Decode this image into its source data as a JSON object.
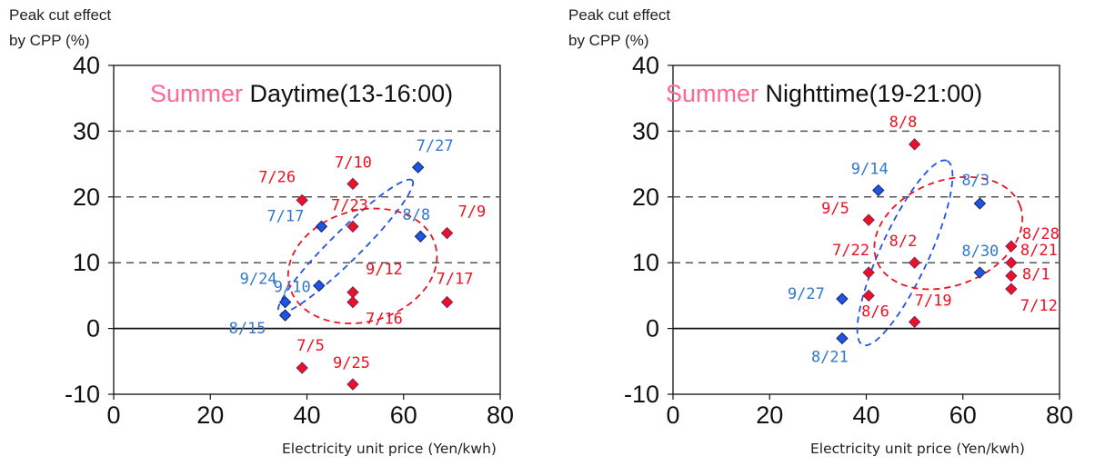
{
  "chart_data": [
    {
      "type": "scatter",
      "title_season": "Summer",
      "title_period": "Daytime(13-16:00)",
      "ylabel_line1": "Peak cut effect",
      "ylabel_line2": "by CPP (%)",
      "xlabel": "Electricity unit price (Yen/kwh)",
      "xlim": [
        0,
        80
      ],
      "ylim": [
        -10,
        40
      ],
      "xticks": [
        0,
        20,
        40,
        60,
        80
      ],
      "yticks": [
        -10,
        0,
        10,
        20,
        30,
        40
      ],
      "dashed_gridlines_y": [
        10,
        20,
        30
      ],
      "colors": {
        "blue": "#2255dd",
        "red": "#ee1122",
        "blue_label": "#3377cc",
        "red_label": "#ee1122",
        "season": "#ff6699"
      },
      "series": [
        {
          "color_key": "blue",
          "points": [
            {
              "label": "7/27",
              "x": 63,
              "y": 24.5
            },
            {
              "label": "7/17",
              "x": 43,
              "y": 15.5
            },
            {
              "label": "8/8",
              "x": 63.5,
              "y": 14
            },
            {
              "label": "9/10",
              "x": 42.5,
              "y": 6.5
            },
            {
              "label": "9/24",
              "x": 35.5,
              "y": 4
            },
            {
              "label": "8/15",
              "x": 35.5,
              "y": 2
            }
          ]
        },
        {
          "color_key": "red",
          "points": [
            {
              "label": "7/26",
              "x": 39,
              "y": 19.5
            },
            {
              "label": "7/10",
              "x": 49.5,
              "y": 22
            },
            {
              "label": "7/23",
              "x": 49.5,
              "y": 15.5
            },
            {
              "label": "7/9",
              "x": 69,
              "y": 14.5
            },
            {
              "label": "9/12",
              "x": 49.5,
              "y": 5.5
            },
            {
              "label": "7/16",
              "x": 49.5,
              "y": 4
            },
            {
              "label": "7/17",
              "x": 69,
              "y": 4
            },
            {
              "label": "7/5",
              "x": 39,
              "y": -6
            },
            {
              "label": "9/25",
              "x": 49.5,
              "y": -8.5
            }
          ]
        }
      ],
      "ellipses": [
        {
          "color_key": "blue",
          "cx": 48,
          "cy": 12.5,
          "rx": 31,
          "ry": 5.5,
          "angle": 36
        },
        {
          "color_key": "red",
          "cx": 51.5,
          "cy": 9.5,
          "rx": 28,
          "ry": 19,
          "angle": 12
        }
      ]
    },
    {
      "type": "scatter",
      "title_season": "Summer",
      "title_period": "Nighttime(19-21:00)",
      "ylabel_line1": "Peak cut effect",
      "ylabel_line2": "by CPP (%)",
      "xlabel": "Electricity unit price (Yen/kwh)",
      "xlim": [
        0,
        80
      ],
      "ylim": [
        -10,
        40
      ],
      "xticks": [
        0,
        20,
        40,
        60,
        80
      ],
      "yticks": [
        -10,
        0,
        10,
        20,
        30,
        40
      ],
      "dashed_gridlines_y": [
        10,
        20,
        30
      ],
      "colors": {
        "blue": "#2255dd",
        "red": "#ee1122",
        "blue_label": "#3377cc",
        "red_label": "#ee1122",
        "season": "#ff6699"
      },
      "series": [
        {
          "color_key": "blue",
          "points": [
            {
              "label": "9/14",
              "x": 42.5,
              "y": 21
            },
            {
              "label": "8/3",
              "x": 63.5,
              "y": 19
            },
            {
              "label": "8/30",
              "x": 63.5,
              "y": 8.5
            },
            {
              "label": "9/27",
              "x": 35,
              "y": 4.5
            },
            {
              "label": "8/21",
              "x": 35,
              "y": -1.5
            }
          ]
        },
        {
          "color_key": "red",
          "points": [
            {
              "label": "8/8",
              "x": 50,
              "y": 28
            },
            {
              "label": "9/5",
              "x": 40.5,
              "y": 16.5
            },
            {
              "label": "8/28",
              "x": 70,
              "y": 12.5
            },
            {
              "label": "8/2",
              "x": 50,
              "y": 10
            },
            {
              "label": "8/21",
              "x": 70,
              "y": 10
            },
            {
              "label": "7/22",
              "x": 40.5,
              "y": 8.5
            },
            {
              "label": "8/1",
              "x": 70,
              "y": 8
            },
            {
              "label": "7/12",
              "x": 70,
              "y": 6
            },
            {
              "label": "8/6",
              "x": 40.5,
              "y": 5
            },
            {
              "label": "7/19",
              "x": 50,
              "y": 1
            }
          ]
        }
      ],
      "ellipses": [
        {
          "color_key": "blue",
          "cx": 48,
          "cy": 11.5,
          "rx": 30,
          "ry": 10,
          "angle": 58
        },
        {
          "color_key": "red",
          "cx": 57,
          "cy": 14.5,
          "rx": 28,
          "ry": 18,
          "angle": 16
        }
      ]
    }
  ]
}
